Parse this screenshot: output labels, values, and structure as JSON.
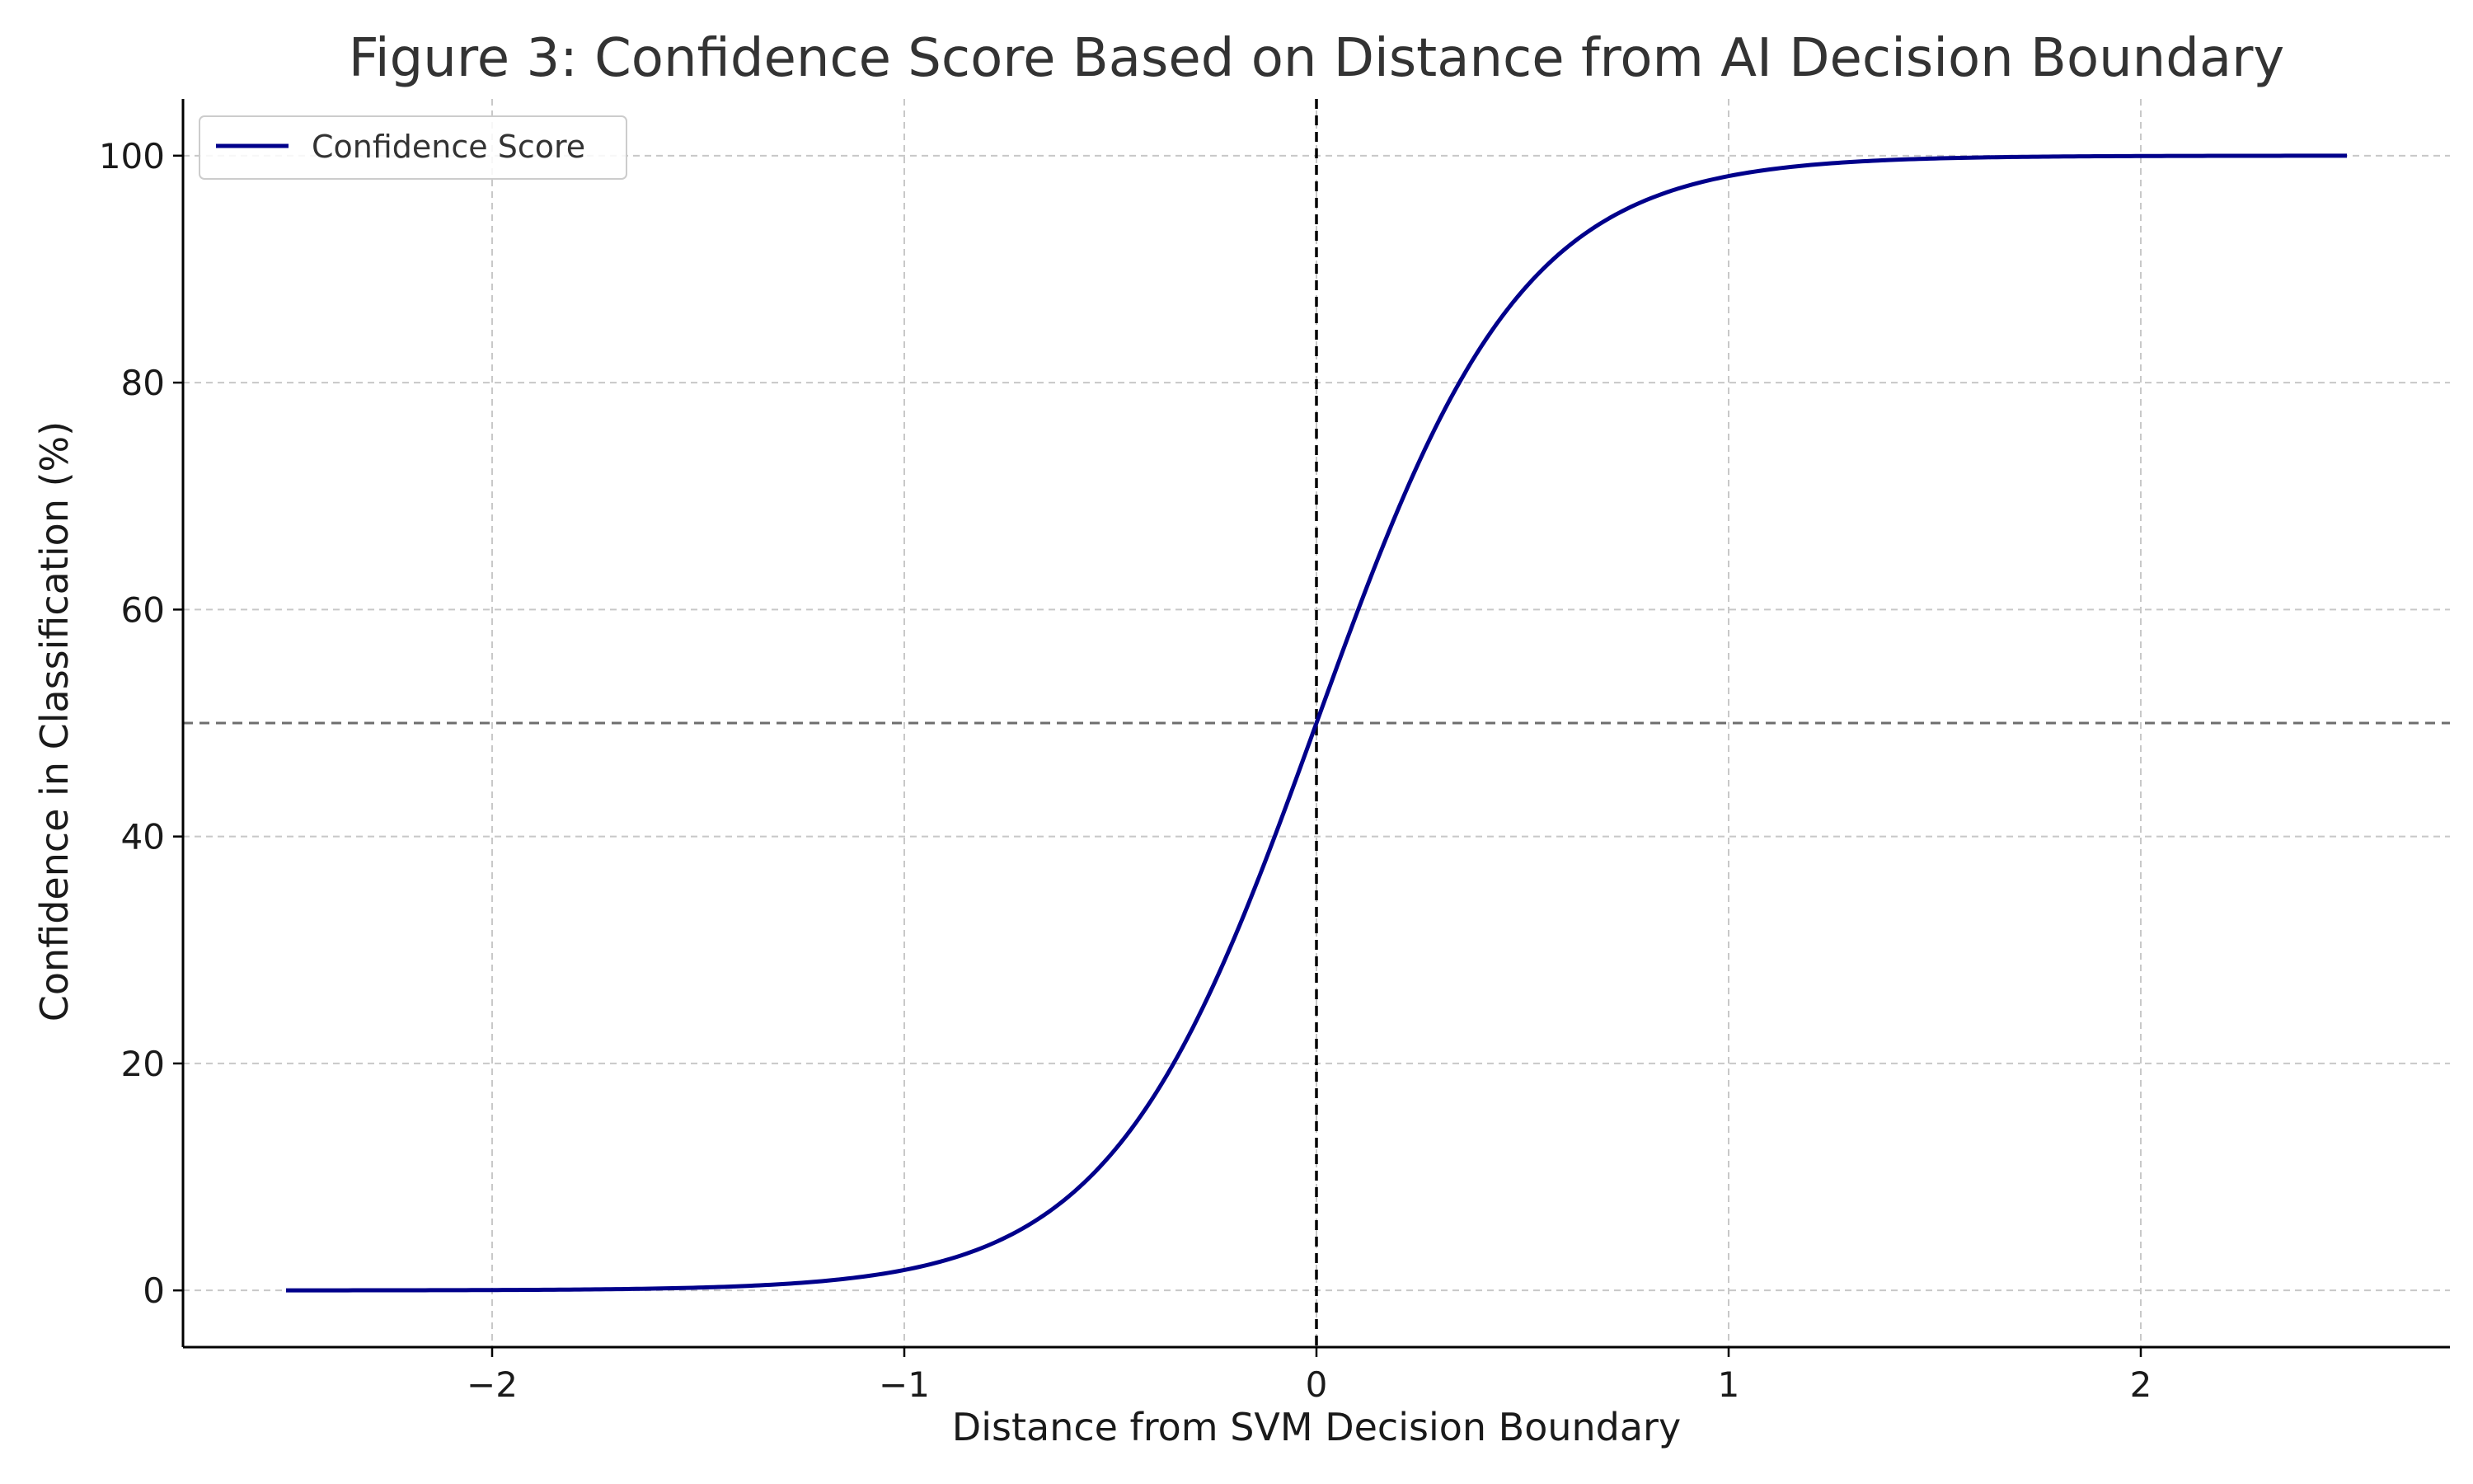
{
  "chart_data": {
    "type": "line",
    "title": "Figure 3: Confidence Score Based on Distance from AI Decision Boundary",
    "xlabel": "Distance from SVM Decision Boundary",
    "ylabel": "Confidence in Classification (%)",
    "xlim": [
      -2.75,
      2.75
    ],
    "ylim": [
      -5,
      105
    ],
    "xticks": [
      -2,
      -1,
      0,
      1,
      2
    ],
    "xtick_labels": [
      "−2",
      "−1",
      "0",
      "1",
      "2"
    ],
    "yticks": [
      0,
      20,
      40,
      60,
      80,
      100
    ],
    "ytick_labels": [
      "0",
      "20",
      "40",
      "60",
      "80",
      "100"
    ],
    "grid": true,
    "legend_position": "top-left",
    "series": [
      {
        "name": "Confidence Score",
        "color": "#00008b",
        "function": "logistic",
        "k": 4,
        "x_range": [
          -2.5,
          2.5
        ],
        "x": [
          -2.5,
          -2.0,
          -1.5,
          -1.2,
          -1.0,
          -0.8,
          -0.6,
          -0.4,
          -0.2,
          0.0,
          0.2,
          0.4,
          0.6,
          0.8,
          1.0,
          1.2,
          1.5,
          2.0,
          2.5
        ],
        "y": [
          0.0,
          0.03,
          0.25,
          0.82,
          1.8,
          3.9,
          8.3,
          16.8,
          31.0,
          50.0,
          69.0,
          83.2,
          91.7,
          96.1,
          98.2,
          99.2,
          99.75,
          99.97,
          100.0
        ]
      }
    ],
    "reference_lines": [
      {
        "orientation": "vertical",
        "value": 0,
        "style": "dashed",
        "color": "#000000"
      },
      {
        "orientation": "horizontal",
        "value": 50,
        "style": "dashed",
        "color": "#6e6e6e"
      }
    ]
  }
}
